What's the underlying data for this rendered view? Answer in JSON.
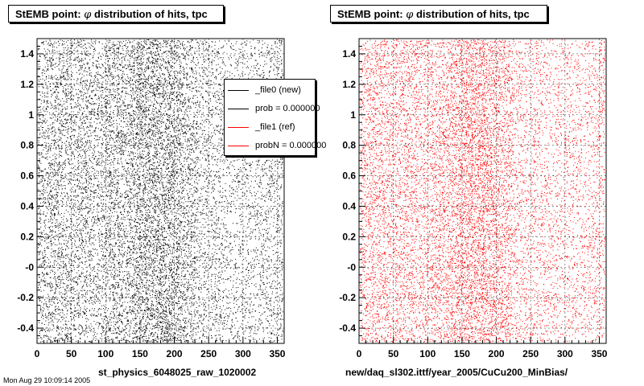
{
  "footer_text": "Mon Aug 29 10:09:14 2005",
  "chart_data": [
    {
      "type": "scatter",
      "title": "StEMB point:  φ distribution of hits, tpc",
      "title_prefix": "StEMB point:",
      "title_symbol": "φ",
      "title_suffix": "distribution of hits, tpc",
      "xlabel": "st_physics_6048025_raw_1020002",
      "ylabel": "",
      "xlim": [
        0,
        360
      ],
      "ylim": [
        -0.5,
        1.5
      ],
      "x_ticks": [
        "0",
        "50",
        "100",
        "150",
        "200",
        "250",
        "300",
        "350"
      ],
      "y_ticks": [
        "-0.4",
        "-0.2",
        "-0",
        "0.2",
        "0.4",
        "0.6",
        "0.8",
        "1",
        "1.2",
        "1.4"
      ],
      "grid": true,
      "point_color": "#000000",
      "phi_density_profile": {
        "x": [
          0,
          15,
          30,
          50,
          70,
          90,
          110,
          130,
          150,
          165,
          180,
          200,
          220,
          240,
          260,
          280,
          300,
          320,
          340,
          360
        ],
        "relative_density": [
          0.45,
          0.6,
          0.7,
          0.6,
          0.65,
          0.5,
          0.75,
          0.7,
          1.0,
          0.95,
          1.0,
          0.85,
          0.65,
          0.4,
          0.45,
          0.3,
          0.35,
          0.3,
          0.4,
          0.5
        ]
      },
      "legend": {
        "placement": "top-right",
        "entries": [
          {
            "label": "_file0 (new)",
            "color": "#000000"
          },
          {
            "label": "prob = 0.000000",
            "color": "#000000"
          },
          {
            "label": "_file1 (ref)",
            "color": "#ff0000"
          },
          {
            "label": "probN = 0.000000",
            "color": "#ff0000"
          }
        ]
      }
    },
    {
      "type": "scatter",
      "title": "StEMB point:  φ distribution of hits, tpc",
      "title_prefix": "StEMB point:",
      "title_symbol": "φ",
      "title_suffix": "distribution of hits, tpc",
      "xlabel": "new/daq_sl302.ittf/year_2005/CuCu200_MinBias/",
      "ylabel": "",
      "xlim": [
        0,
        360
      ],
      "ylim": [
        -0.5,
        1.5
      ],
      "x_ticks": [
        "0",
        "50",
        "100",
        "150",
        "200",
        "250",
        "300",
        "350"
      ],
      "y_ticks": [
        "-0.4",
        "-0.2",
        "-0",
        "0.2",
        "0.4",
        "0.6",
        "0.8",
        "1",
        "1.2",
        "1.4"
      ],
      "grid": true,
      "point_color": "#ff0000",
      "phi_density_profile": {
        "x": [
          0,
          15,
          30,
          50,
          70,
          90,
          110,
          130,
          150,
          165,
          180,
          200,
          220,
          240,
          260,
          280,
          300,
          320,
          340,
          360
        ],
        "relative_density": [
          0.45,
          0.55,
          0.65,
          0.55,
          0.6,
          0.45,
          0.65,
          0.6,
          0.95,
          0.9,
          1.0,
          0.8,
          0.55,
          0.35,
          0.4,
          0.3,
          0.35,
          0.3,
          0.35,
          0.45
        ]
      }
    }
  ]
}
